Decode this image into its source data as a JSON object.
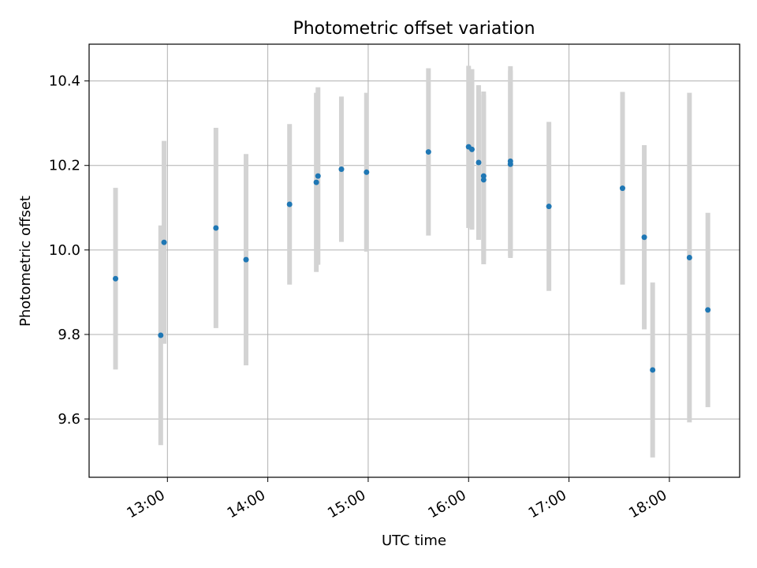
{
  "chart_data": {
    "type": "scatter",
    "title": "Photometric offset variation",
    "xlabel": "UTC time",
    "ylabel": "Photometric offset",
    "x_tick_labels": [
      "13:00",
      "14:00",
      "15:00",
      "16:00",
      "17:00",
      "18:00"
    ],
    "y_tick_labels": [
      "9.6",
      "9.8",
      "10.0",
      "10.2",
      "10.4"
    ],
    "x_ticks_hours": [
      13,
      14,
      15,
      16,
      17,
      18
    ],
    "y_ticks": [
      9.6,
      9.8,
      10.0,
      10.2,
      10.4
    ],
    "xlim_hours": [
      12.22,
      18.7
    ],
    "ylim": [
      9.462,
      10.487
    ],
    "grid": true,
    "point_color": "#1f77b4",
    "errorbar_color": "#d3d3d3",
    "points": [
      {
        "time": "12:29",
        "y": 9.932,
        "err": 0.215
      },
      {
        "time": "12:56",
        "y": 9.798,
        "err": 0.26
      },
      {
        "time": "12:58",
        "y": 10.018,
        "err": 0.24
      },
      {
        "time": "13:29",
        "y": 10.052,
        "err": 0.237
      },
      {
        "time": "13:47",
        "y": 9.977,
        "err": 0.25
      },
      {
        "time": "14:13",
        "y": 10.108,
        "err": 0.19
      },
      {
        "time": "14:29",
        "y": 10.16,
        "err": 0.212
      },
      {
        "time": "14:30",
        "y": 10.175,
        "err": 0.21
      },
      {
        "time": "14:44",
        "y": 10.191,
        "err": 0.172
      },
      {
        "time": "14:59",
        "y": 10.184,
        "err": 0.188
      },
      {
        "time": "15:36",
        "y": 10.232,
        "err": 0.198
      },
      {
        "time": "16:00",
        "y": 10.244,
        "err": 0.192
      },
      {
        "time": "16:02",
        "y": 10.238,
        "err": 0.19
      },
      {
        "time": "16:06",
        "y": 10.207,
        "err": 0.183
      },
      {
        "time": "16:09",
        "y": 10.175,
        "err": 0.2
      },
      {
        "time": "16:09",
        "y": 10.166,
        "err": 0.2
      },
      {
        "time": "16:25",
        "y": 10.21,
        "err": 0.225
      },
      {
        "time": "16:25",
        "y": 10.203,
        "err": 0.222
      },
      {
        "time": "16:48",
        "y": 10.103,
        "err": 0.2
      },
      {
        "time": "17:32",
        "y": 10.146,
        "err": 0.228
      },
      {
        "time": "17:45",
        "y": 10.03,
        "err": 0.218
      },
      {
        "time": "17:50",
        "y": 9.716,
        "err": 0.207
      },
      {
        "time": "18:12",
        "y": 9.982,
        "err": 0.39
      },
      {
        "time": "18:23",
        "y": 9.858,
        "err": 0.23
      }
    ]
  }
}
